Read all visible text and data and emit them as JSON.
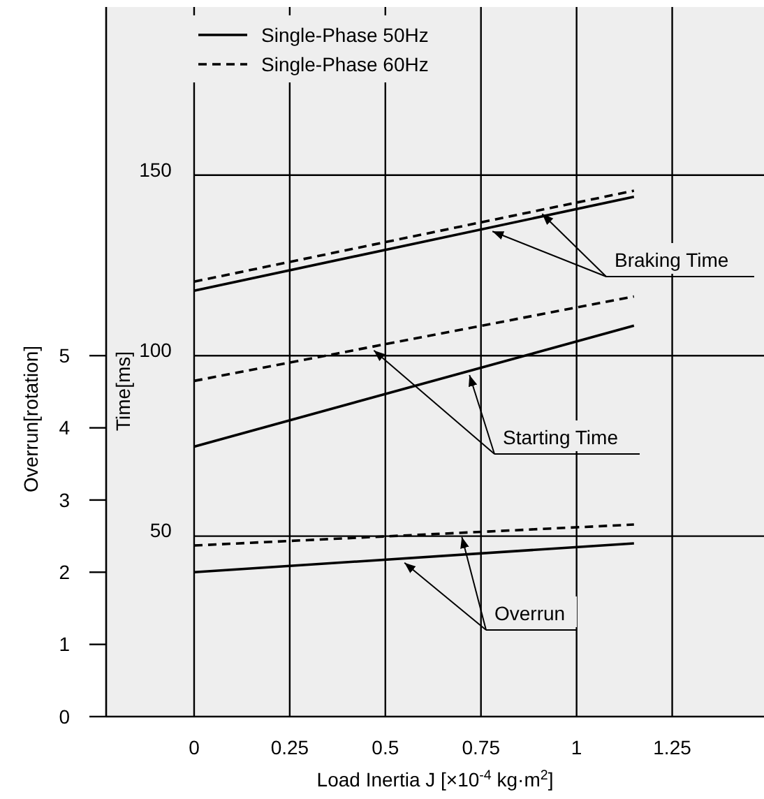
{
  "chart_data": {
    "type": "line",
    "xlabel": "Load Inertia J [×10$^{-4}$ kg·m$^{2}$]",
    "ylabel": "Overrun[rotation]",
    "y2label": "Time[ms]",
    "xlim": [
      -0.23,
      1.49
    ],
    "xticks": [
      0,
      0.25,
      0.5,
      0.75,
      1,
      1.25
    ],
    "ylim": [
      0,
      9.83
    ],
    "yticks": [
      0,
      1,
      2,
      3,
      4,
      5
    ],
    "y2lim": [
      0,
      196.6
    ],
    "y2ticks": [
      50,
      100,
      150
    ],
    "grid": true,
    "legend": "top left",
    "marker": "none",
    "x": [
      0,
      1.15
    ],
    "series": [
      {
        "name": "Single-Phase 50Hz",
        "color": "#000000",
        "axis": "y2",
        "line_style": "solid",
        "values": [
          118,
          144
        ]
      },
      {
        "name": "Single-Phase 60Hz",
        "color": "#000000",
        "axis": "y2",
        "line_style": "dashed",
        "values": [
          120.5,
          145.7
        ]
      },
      {
        "color": "#000000",
        "axis": "y2",
        "line_style": "solid",
        "values": [
          74.8,
          108.3
        ]
      },
      {
        "color": "#000000",
        "axis": "y2",
        "line_style": "dashed",
        "values": [
          93,
          116.4
        ]
      },
      {
        "color": "#000000",
        "line_style": "solid",
        "values": [
          2.0,
          2.4
        ]
      },
      {
        "color": "#000000",
        "line_style": "dashed",
        "values": [
          2.37,
          2.66
        ]
      }
    ],
    "annotations": [
      {
        "text": "Braking Time",
        "x": 0.78,
        "y": 6.78
      },
      {
        "text": "Starting Time",
        "x": 0.47,
        "y": 5.13
      },
      {
        "text": "Overrun",
        "x": 0.55,
        "y": 2.19
      }
    ]
  }
}
